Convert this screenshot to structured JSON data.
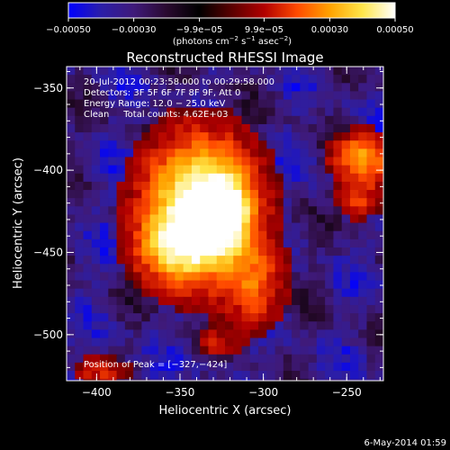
{
  "chart_data": {
    "type": "heatmap",
    "title": "Reconstructed RHESSI Image",
    "xlabel": "Heliocentric X (arcsec)",
    "ylabel": "Heliocentric Y (arcsec)",
    "xlim": [
      -418,
      -228
    ],
    "ylim": [
      -528,
      -337
    ],
    "x_ticks": [
      -400,
      -350,
      -300,
      -250
    ],
    "x_tick_labels": [
      "−400",
      "−350",
      "−300",
      "−250"
    ],
    "y_ticks": [
      -350,
      -400,
      -450,
      -500
    ],
    "y_tick_labels": [
      "−350",
      "−400",
      "−450",
      "−500"
    ],
    "colorbar": {
      "range": [
        -0.0005,
        0.0005
      ],
      "ticks": [
        -0.0005,
        -0.0003,
        -9.9e-05,
        9.9e-05,
        0.0003,
        0.0005
      ],
      "tick_labels": [
        "−0.00050",
        "−0.00030",
        "−9.9e−05",
        "9.9e−05",
        "0.00030",
        "0.00050"
      ],
      "unit_main": "(photons cm",
      "unit_exp1": "−2",
      "unit_mid": " s",
      "unit_exp2": "−1",
      "unit_mid2": " asec",
      "unit_exp3": "−2",
      "unit_end": ")",
      "stops": [
        "#0000ff",
        "#2b1ea8",
        "#3f1a7a",
        "#2a0a30",
        "#000000",
        "#5a0000",
        "#b20000",
        "#ff4a00",
        "#ffa200",
        "#ffe64a",
        "#ffffff"
      ]
    },
    "sources": [
      {
        "x": -340,
        "y": -420,
        "sx": 22,
        "sy": 28,
        "amp": 1.0
      },
      {
        "x": -326,
        "y": -424,
        "sx": 10,
        "sy": 14,
        "amp": 0.6
      },
      {
        "x": -355,
        "y": -445,
        "sx": 16,
        "sy": 14,
        "amp": 0.45
      },
      {
        "x": -308,
        "y": -468,
        "sx": 12,
        "sy": 18,
        "amp": 0.35
      },
      {
        "x": -243,
        "y": -390,
        "sx": 12,
        "sy": 10,
        "amp": 0.55
      },
      {
        "x": -245,
        "y": -415,
        "sx": 9,
        "sy": 8,
        "amp": 0.3
      },
      {
        "x": -400,
        "y": -520,
        "sx": 12,
        "sy": 6,
        "amp": 0.25
      },
      {
        "x": -330,
        "y": -503,
        "sx": 8,
        "sy": 6,
        "amp": 0.2
      }
    ],
    "peak": {
      "x": -327,
      "y": -424
    },
    "annotations": [
      "20-Jul-2012 00:23:58.000 to 00:29:58.000",
      "Detectors: 3F 5F 6F 7F 8F 9F, Att 0",
      "Energy Range: 12.0 − 25.0 keV",
      "Clean     Total counts: 4.62E+03"
    ],
    "peak_label": "Position of Peak = [−327,−424]"
  },
  "footer": {
    "timestamp": "6-May-2014 01:59"
  }
}
